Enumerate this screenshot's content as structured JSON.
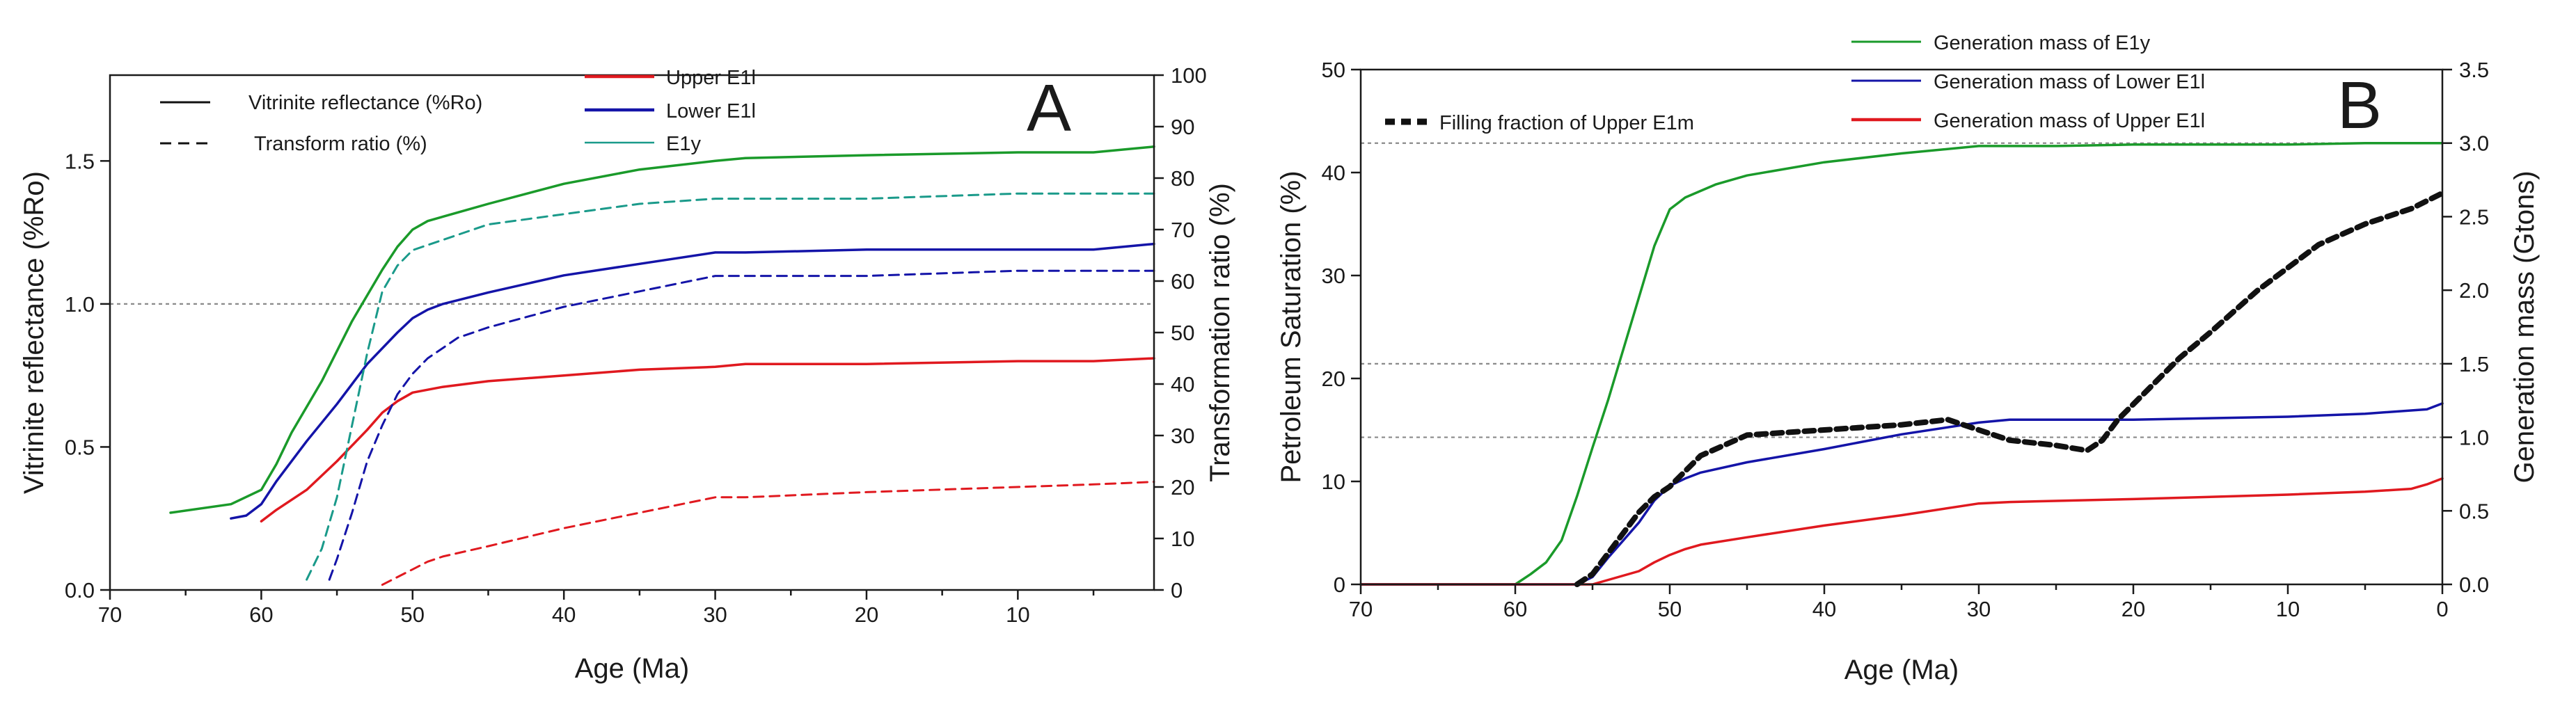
{
  "chart_data": [
    {
      "panel": "A",
      "type": "line",
      "xlabel": "Age (Ma)",
      "ylabel": "Vitrinite reflectance (%Ro)",
      "y2label": "Transformation ratio (%)",
      "xlim": [
        70,
        1
      ],
      "ylim": [
        0,
        1.8
      ],
      "y2lim": [
        0,
        100
      ],
      "x_ticks": [
        70,
        60,
        50,
        40,
        30,
        20,
        10
      ],
      "y_ticks": [
        "0.0",
        "0.5",
        "1.0",
        "1.5"
      ],
      "y2_ticks": [
        "0",
        "10",
        "20",
        "30",
        "40",
        "50",
        "60",
        "70",
        "80",
        "90",
        "100"
      ],
      "reference_lines": [
        {
          "axis": "y",
          "value": 1.0
        }
      ],
      "legend": {
        "line_styles": [
          {
            "label": "Vitrinite reflectance (%Ro)",
            "style": "solid"
          },
          {
            "label": "Transform ratio (%)",
            "style": "dashed"
          }
        ],
        "series": [
          "Upper E1l",
          "Lower E1l",
          "E1y"
        ]
      },
      "series": [
        {
          "name": "E1y %Ro",
          "color": "#1a9a2a",
          "style": "solid",
          "axis": "left",
          "x": [
            66,
            62,
            60,
            59,
            58,
            56,
            54,
            52,
            51,
            50,
            49,
            47,
            45,
            40,
            35,
            30,
            28,
            20,
            10,
            5,
            1
          ],
          "y": [
            0.27,
            0.3,
            0.35,
            0.44,
            0.55,
            0.73,
            0.94,
            1.12,
            1.2,
            1.26,
            1.29,
            1.32,
            1.35,
            1.42,
            1.47,
            1.5,
            1.51,
            1.52,
            1.53,
            1.53,
            1.55
          ]
        },
        {
          "name": "Lower E1l %Ro",
          "color": "#1414a8",
          "style": "solid",
          "axis": "left",
          "x": [
            62,
            61,
            60,
            59,
            57,
            55,
            53,
            51,
            50,
            49,
            48,
            45,
            40,
            35,
            30,
            28,
            20,
            10,
            5,
            1
          ],
          "y": [
            0.25,
            0.26,
            0.3,
            0.38,
            0.52,
            0.65,
            0.79,
            0.9,
            0.95,
            0.98,
            1.0,
            1.04,
            1.1,
            1.14,
            1.18,
            1.18,
            1.19,
            1.19,
            1.19,
            1.21
          ]
        },
        {
          "name": "Upper E1l %Ro",
          "color": "#e0191f",
          "style": "solid",
          "axis": "left",
          "x": [
            60,
            59,
            57,
            55,
            53,
            52,
            51,
            50,
            49,
            48,
            45,
            40,
            35,
            30,
            28,
            20,
            10,
            5,
            1
          ],
          "y": [
            0.24,
            0.28,
            0.35,
            0.45,
            0.56,
            0.62,
            0.66,
            0.69,
            0.7,
            0.71,
            0.73,
            0.75,
            0.77,
            0.78,
            0.79,
            0.79,
            0.8,
            0.8,
            0.81
          ]
        },
        {
          "name": "E1y TR",
          "color": "#1a9a8a",
          "style": "dashed",
          "axis": "right",
          "x": [
            57,
            56,
            55,
            54,
            53,
            52,
            51,
            50,
            49,
            47,
            45,
            40,
            35,
            30,
            28,
            20,
            10,
            5,
            1
          ],
          "y": [
            2,
            8,
            18,
            32,
            46,
            58,
            63,
            66,
            67,
            69,
            71,
            73,
            75,
            76,
            76,
            76,
            77,
            77,
            77
          ]
        },
        {
          "name": "Lower E1l TR",
          "color": "#1414a8",
          "style": "dashed",
          "axis": "right",
          "x": [
            55.5,
            55,
            54,
            53,
            52,
            51,
            50,
            49,
            48,
            47,
            45,
            40,
            35,
            30,
            28,
            20,
            10,
            5,
            1
          ],
          "y": [
            2,
            6,
            15,
            25,
            32,
            38,
            42,
            45,
            47,
            49,
            51,
            55,
            58,
            61,
            61,
            61,
            62,
            62,
            62
          ]
        },
        {
          "name": "Upper E1l TR",
          "color": "#e0191f",
          "style": "dashed",
          "axis": "right",
          "x": [
            52,
            51,
            50,
            49,
            48,
            45,
            40,
            35,
            30,
            28,
            20,
            10,
            5,
            1
          ],
          "y": [
            1,
            2.5,
            4,
            5.5,
            6.5,
            8.5,
            12,
            15,
            18,
            18,
            19,
            20,
            20.5,
            21
          ]
        }
      ]
    },
    {
      "panel": "B",
      "type": "line",
      "xlabel": "Age (Ma)",
      "ylabel": "Petroleum Saturation (%)",
      "y2label": "Generation mass (Gtons)",
      "xlim": [
        70,
        0
      ],
      "ylim": [
        0,
        50
      ],
      "y2lim": [
        0,
        3.5
      ],
      "x_ticks": [
        70,
        60,
        50,
        40,
        30,
        20,
        10,
        0
      ],
      "y_ticks": [
        "0",
        "10",
        "20",
        "30",
        "40",
        "50"
      ],
      "y2_ticks": [
        "0.0",
        "0.5",
        "1.0",
        "1.5",
        "2.0",
        "2.5",
        "3.0",
        "3.5"
      ],
      "reference_lines": [
        {
          "axis": "y2",
          "value": 3.0
        },
        {
          "axis": "y2",
          "value": 1.5
        },
        {
          "axis": "y2",
          "value": 1.0
        }
      ],
      "legend": {
        "series": [
          "Generation mass of E1y",
          "Generation mass of Lower E1l",
          "Generation mass of Upper E1l",
          "Filling fraction of Upper E1m"
        ]
      },
      "series": [
        {
          "name": "Generation mass of E1y",
          "color": "#1a9a2a",
          "style": "solid",
          "axis": "right",
          "x": [
            70,
            60,
            59,
            58,
            57,
            56,
            55,
            54,
            53,
            52,
            51,
            50,
            49,
            47,
            45,
            40,
            35,
            30,
            25,
            20,
            10,
            5,
            0
          ],
          "y": [
            0,
            0,
            0.07,
            0.15,
            0.3,
            0.6,
            0.93,
            1.25,
            1.6,
            1.95,
            2.3,
            2.55,
            2.63,
            2.72,
            2.78,
            2.87,
            2.93,
            2.98,
            2.98,
            2.99,
            2.99,
            3.0,
            3.0
          ]
        },
        {
          "name": "Generation mass of Lower E1l",
          "color": "#1414a8",
          "style": "solid",
          "axis": "right",
          "x": [
            70,
            56,
            55,
            54,
            53,
            52,
            51,
            50,
            49,
            48,
            45,
            40,
            35,
            30,
            28,
            20,
            10,
            5,
            1,
            0
          ],
          "y": [
            0,
            0,
            0.05,
            0.18,
            0.3,
            0.42,
            0.57,
            0.67,
            0.72,
            0.76,
            0.83,
            0.92,
            1.02,
            1.1,
            1.12,
            1.12,
            1.14,
            1.16,
            1.19,
            1.23
          ]
        },
        {
          "name": "Generation mass of Upper E1l",
          "color": "#e0191f",
          "style": "solid",
          "axis": "right",
          "x": [
            70,
            55,
            52,
            51,
            50,
            49,
            48,
            45,
            40,
            35,
            30,
            28,
            20,
            10,
            5,
            2,
            1,
            0
          ],
          "y": [
            0,
            0,
            0.09,
            0.15,
            0.2,
            0.24,
            0.27,
            0.32,
            0.4,
            0.47,
            0.55,
            0.56,
            0.58,
            0.61,
            0.63,
            0.65,
            0.68,
            0.72
          ]
        },
        {
          "name": "Filling fraction of Upper E1m",
          "color": "#111111",
          "style": "dashed",
          "axis": "left",
          "x": [
            56,
            55,
            54,
            53,
            52,
            51,
            50,
            49,
            48,
            45,
            40,
            35,
            32,
            30,
            28,
            25,
            23,
            22,
            21,
            20,
            17,
            15,
            12,
            8,
            5,
            2,
            0
          ],
          "y": [
            0,
            1,
            3,
            5,
            7,
            8.5,
            9.5,
            11,
            12.5,
            14.5,
            15,
            15.5,
            16,
            15,
            14,
            13.5,
            13,
            14,
            16,
            17.5,
            22,
            24.5,
            28.5,
            33,
            35,
            36.5,
            38
          ]
        }
      ]
    }
  ]
}
